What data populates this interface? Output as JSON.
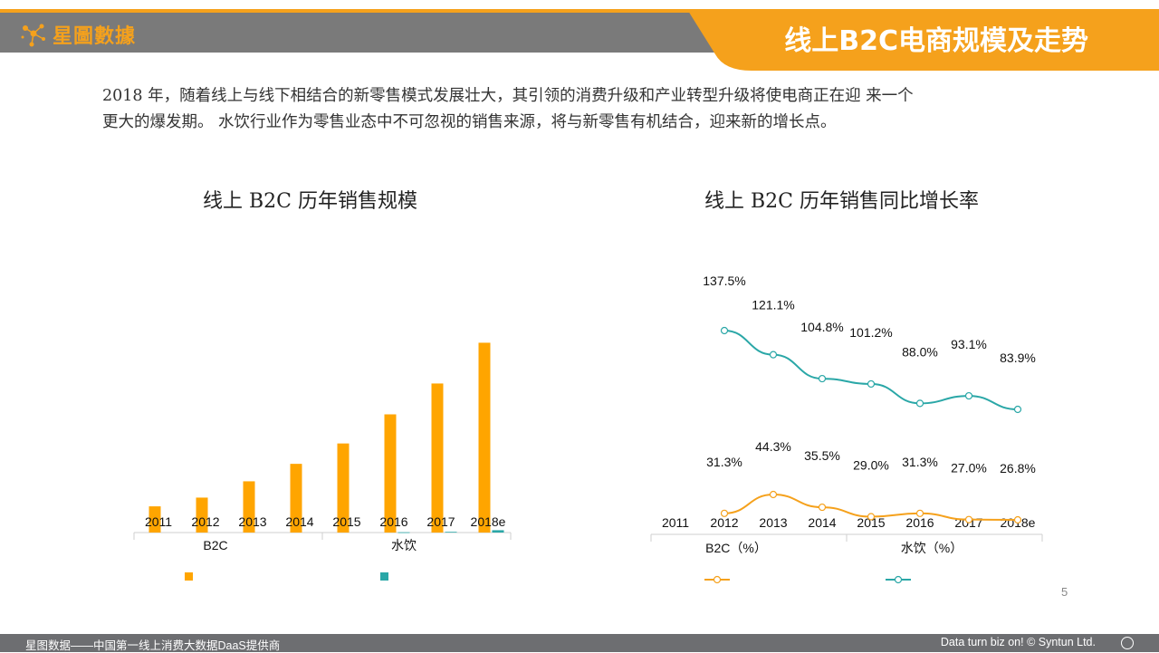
{
  "header": {
    "logo_text": "星圖數據",
    "title": "线上B2C电商规模及走势",
    "accent_color": "#f5a11c",
    "bar_color": "#7a7a7a"
  },
  "intro": {
    "line1": "2018 年，随着线上与线下相结合的新零售模式发展壮大，其引领的消费升级和产业转型升级将使电商正在迎 来一个",
    "line2": "更大的爆发期。 水饮行业作为零售业态中不可忽视的销售来源，将与新零售有机结合，迎来新的增长点。"
  },
  "chart_data": [
    {
      "type": "bar",
      "title": "线上 B2C 历年销售规模",
      "categories": [
        "2011",
        "2012",
        "2013",
        "2014",
        "2015",
        "2016",
        "2017",
        "2018e"
      ],
      "series": [
        {
          "name": "B2C",
          "color": "#ffa500",
          "values": [
            4.5,
            6.0,
            8.8,
            11.8,
            15.3,
            20.3,
            25.6,
            32.6
          ]
        },
        {
          "name": "水饮",
          "color": "#2aa7a7",
          "values": [
            0,
            0,
            0,
            0,
            0,
            0.05,
            0.12,
            0.4
          ]
        }
      ],
      "ylim": [
        0,
        35
      ],
      "legend_position": "bottom",
      "grid": false
    },
    {
      "type": "line",
      "title": "线上 B2C 历年销售同比增长率",
      "categories": [
        "2011",
        "2012",
        "2013",
        "2014",
        "2015",
        "2016",
        "2017",
        "2018e"
      ],
      "series": [
        {
          "name": "B2C（%）",
          "color": "#f5a11c",
          "values": [
            null,
            31.3,
            44.3,
            35.5,
            29.0,
            31.3,
            27.0,
            26.8
          ],
          "labels": [
            "",
            "31.3%",
            "44.3%",
            "35.5%",
            "29.0%",
            "31.3%",
            "27.0%",
            "26.8%"
          ]
        },
        {
          "name": "水饮（%）",
          "color": "#2aa7a7",
          "values": [
            null,
            137.5,
            121.1,
            104.8,
            101.2,
            88.0,
            93.1,
            83.9
          ],
          "labels": [
            "",
            "137.5%",
            "121.1%",
            "104.8%",
            "101.2%",
            "88.0%",
            "93.1%",
            "83.9%"
          ]
        }
      ],
      "legend_position": "bottom",
      "grid": false
    }
  ],
  "page_number": "5",
  "footer": {
    "left": "星图数据——中国第一线上消费大数据DaaS提供商",
    "right": "Data turn biz on! © Syntun Ltd."
  }
}
